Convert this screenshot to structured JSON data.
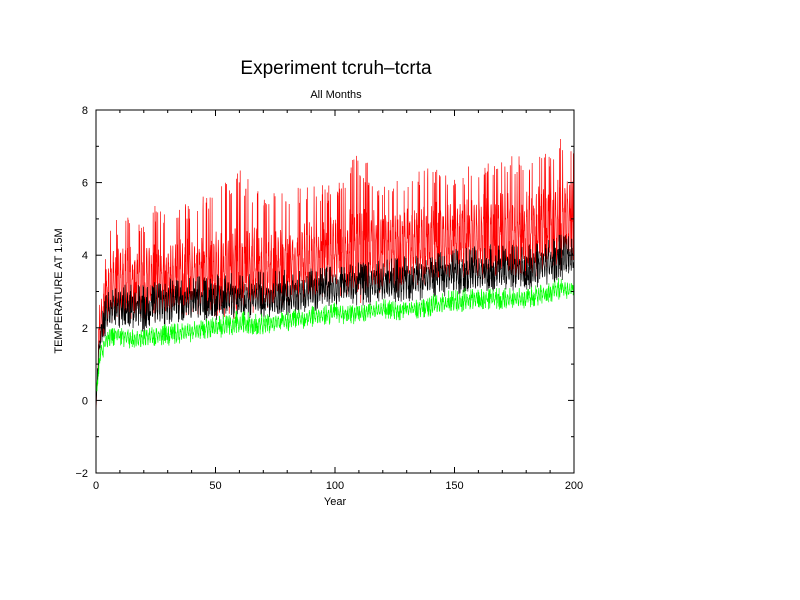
{
  "chart_data": {
    "type": "line",
    "title": "Experiment tcruh–tcrta",
    "subtitle": "All Months",
    "xlabel": "Year",
    "ylabel": "TEMPERATURE AT 1.5M",
    "xlim": [
      0,
      200
    ],
    "ylim": [
      -2,
      8
    ],
    "xticks": [
      0,
      50,
      100,
      150,
      200
    ],
    "yticks": [
      -2,
      0,
      2,
      4,
      6,
      8
    ],
    "grid": false,
    "legend": "none",
    "series": [
      {
        "color": "#ff0000",
        "x": [
          0,
          1,
          2,
          4,
          6,
          8,
          10,
          15,
          20,
          25,
          30,
          40,
          50,
          60,
          70,
          80,
          90,
          100,
          110,
          120,
          130,
          140,
          150,
          160,
          170,
          180,
          190,
          195,
          200
        ],
        "y_mean": [
          -0.5,
          1.5,
          2.2,
          2.8,
          3.0,
          3.2,
          3.2,
          3.3,
          3.2,
          3.3,
          3.4,
          3.4,
          3.5,
          3.6,
          3.6,
          3.7,
          3.8,
          4.0,
          4.0,
          4.1,
          4.2,
          4.3,
          4.4,
          4.5,
          4.6,
          4.6,
          4.8,
          4.9,
          4.9
        ],
        "y_max": [
          -0.3,
          2.5,
          3.0,
          4.1,
          4.8,
          5.0,
          5.0,
          5.2,
          5.0,
          5.4,
          5.2,
          5.5,
          5.8,
          6.5,
          5.6,
          5.9,
          6.0,
          5.9,
          6.9,
          6.0,
          6.2,
          6.5,
          6.3,
          6.6,
          6.8,
          6.7,
          7.0,
          7.3,
          6.8
        ],
        "y_min": [
          -0.8,
          0.5,
          1.5,
          1.8,
          2.0,
          2.1,
          2.1,
          2.2,
          2.0,
          2.2,
          2.3,
          2.3,
          2.4,
          2.5,
          2.5,
          2.6,
          2.7,
          2.8,
          2.9,
          2.9,
          3.0,
          3.1,
          3.2,
          3.3,
          3.3,
          3.3,
          3.5,
          3.5,
          3.6
        ]
      },
      {
        "color": "#000000",
        "x": [
          0,
          1,
          2,
          4,
          6,
          8,
          10,
          15,
          20,
          25,
          30,
          40,
          50,
          60,
          70,
          80,
          90,
          100,
          110,
          120,
          130,
          140,
          150,
          160,
          170,
          180,
          190,
          195,
          200
        ],
        "y_mean": [
          -0.3,
          1.2,
          1.8,
          2.3,
          2.5,
          2.6,
          2.6,
          2.6,
          2.5,
          2.6,
          2.7,
          2.7,
          2.8,
          2.8,
          2.8,
          2.9,
          3.0,
          3.1,
          3.2,
          3.2,
          3.3,
          3.4,
          3.5,
          3.5,
          3.6,
          3.6,
          3.8,
          3.9,
          3.9
        ],
        "y_max": [
          0.0,
          1.6,
          2.3,
          2.9,
          3.1,
          3.2,
          3.2,
          3.3,
          3.2,
          3.3,
          3.4,
          3.4,
          3.5,
          3.6,
          3.6,
          3.6,
          3.7,
          3.8,
          3.8,
          3.9,
          4.0,
          4.0,
          4.2,
          4.3,
          4.3,
          4.3,
          4.5,
          4.6,
          4.5
        ],
        "y_min": [
          -0.6,
          0.8,
          1.5,
          1.8,
          2.0,
          2.0,
          2.0,
          2.0,
          1.8,
          2.0,
          2.1,
          2.1,
          2.2,
          2.3,
          2.2,
          2.3,
          2.4,
          2.6,
          2.6,
          2.6,
          2.7,
          2.8,
          2.9,
          3.0,
          3.0,
          3.0,
          3.2,
          3.3,
          3.3
        ]
      },
      {
        "color": "#00ff00",
        "x": [
          0,
          1,
          2,
          4,
          6,
          8,
          10,
          15,
          20,
          25,
          30,
          40,
          50,
          60,
          70,
          80,
          90,
          100,
          110,
          120,
          130,
          140,
          150,
          160,
          170,
          180,
          190,
          195,
          200
        ],
        "y_mean": [
          0.1,
          0.9,
          1.3,
          1.6,
          1.7,
          1.8,
          1.8,
          1.7,
          1.7,
          1.8,
          1.8,
          1.9,
          2.0,
          2.1,
          2.1,
          2.2,
          2.3,
          2.4,
          2.4,
          2.5,
          2.5,
          2.6,
          2.7,
          2.8,
          2.8,
          2.8,
          3.0,
          3.1,
          3.0
        ],
        "y_max": [
          0.3,
          1.2,
          1.6,
          1.9,
          2.0,
          2.0,
          2.0,
          2.0,
          2.0,
          2.1,
          2.1,
          2.2,
          2.3,
          2.5,
          2.4,
          2.5,
          2.6,
          2.7,
          2.6,
          2.8,
          2.7,
          2.9,
          3.1,
          3.1,
          3.1,
          3.1,
          3.3,
          3.4,
          3.2
        ],
        "y_min": [
          -0.1,
          0.6,
          1.0,
          1.3,
          1.4,
          1.5,
          1.5,
          1.4,
          1.3,
          1.5,
          1.5,
          1.6,
          1.7,
          1.8,
          1.8,
          1.9,
          2.0,
          2.1,
          2.1,
          2.2,
          2.2,
          2.3,
          2.4,
          2.5,
          2.5,
          2.5,
          2.7,
          2.8,
          2.7
        ]
      }
    ]
  }
}
